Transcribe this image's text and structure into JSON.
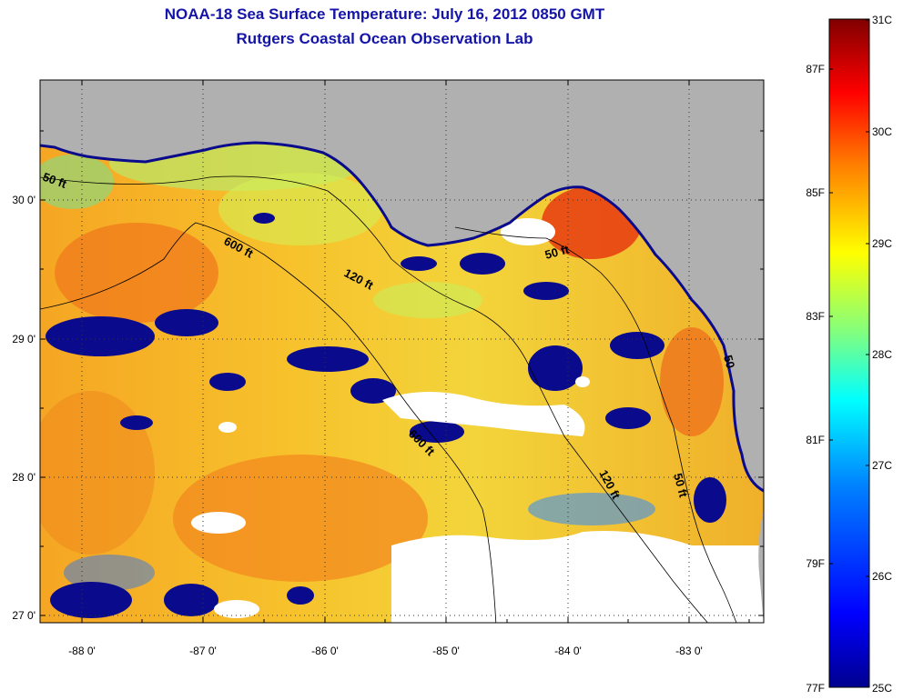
{
  "header": {
    "title": "NOAA-18 Sea Surface Temperature:  July 16, 2012 0850 GMT",
    "subtitle": "Rutgers Coastal Ocean Observation Lab"
  },
  "map": {
    "longitude_labels": [
      "-88 0'",
      "-87 0'",
      "-86 0'",
      "-85 0'",
      "-84 0'",
      "-83 0'"
    ],
    "latitude_labels": [
      "30 0'",
      "29 0'",
      "28 0'",
      "27 0'"
    ],
    "longitude_range": [
      -88.35,
      -82.4
    ],
    "latitude_range": [
      26.95,
      30.85
    ],
    "grid": "dotted",
    "land_color": "#b0b0b0",
    "cloud_color": "#ffffff",
    "contours": {
      "c50_west": "50 ft",
      "c600_north": "600 ft",
      "c120_north": "120 ft",
      "c50_east": "50 ft",
      "c600_south": "600 ft",
      "c120_south": "120 ft",
      "c50_south": "50 ft",
      "c50_coast": "50"
    }
  },
  "colorbar": {
    "celsius_labels": [
      "31C",
      "30C",
      "29C",
      "28C",
      "27C",
      "26C",
      "25C"
    ],
    "fahrenheit_labels": [
      "87F",
      "85F",
      "83F",
      "81F",
      "79F",
      "77F"
    ],
    "celsius_range": [
      25,
      31
    ],
    "colors": [
      "#00008f",
      "#0000ff",
      "#0080ff",
      "#00ffff",
      "#80ff80",
      "#ffff00",
      "#ff8000",
      "#ff0000",
      "#800000"
    ]
  }
}
